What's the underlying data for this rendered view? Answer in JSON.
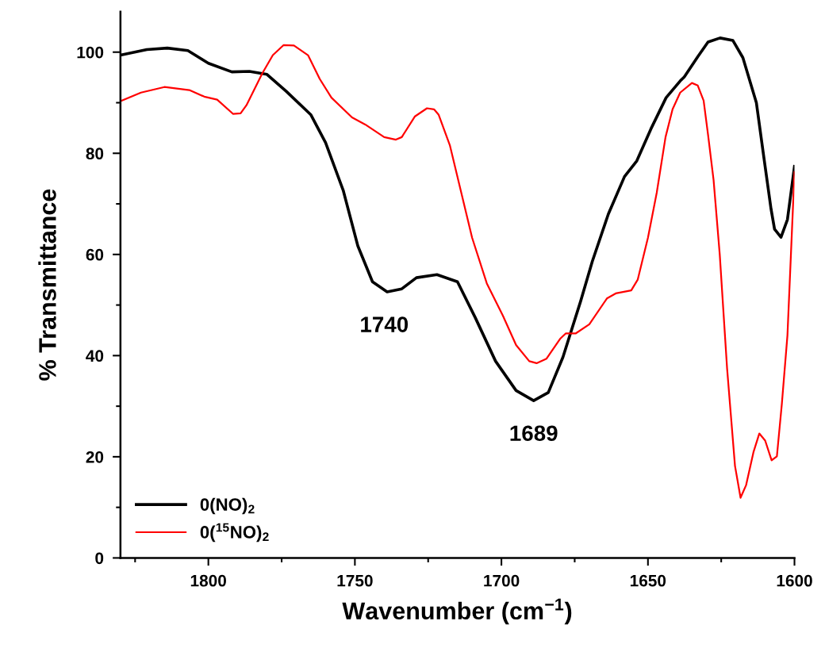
{
  "chart_data": {
    "type": "line",
    "xlabel": "Wavenumber (cm$^{−1}$)",
    "ylabel": "% Transmittance",
    "xlim": [
      1830,
      1600
    ],
    "ylim": [
      0,
      108
    ],
    "xticks": [
      1800,
      1750,
      1700,
      1650,
      1600
    ],
    "yticks": [
      0,
      20,
      40,
      60,
      80,
      100
    ],
    "grid": false,
    "legend": "bottom left",
    "line_style": "solid",
    "marker": "none",
    "series": [
      {
        "name": "0(NO)$_{2}$",
        "color": "#000000",
        "x": [
          1830,
          1821,
          1814,
          1807,
          1800,
          1792,
          1786,
          1780,
          1773.5,
          1765,
          1760,
          1754,
          1749,
          1744,
          1739,
          1734,
          1729,
          1722,
          1715,
          1709,
          1702,
          1695,
          1689,
          1684,
          1679,
          1673,
          1669,
          1663.5,
          1658,
          1653.8,
          1649,
          1643.8,
          1639,
          1637.6,
          1633,
          1629.5,
          1625.4,
          1621,
          1617.6,
          1613,
          1610.5,
          1608,
          1606.8,
          1604.6,
          1602.4,
          1600
        ],
        "values": [
          99.4,
          100.5,
          100.8,
          100.3,
          97.8,
          96.1,
          96.2,
          95.6,
          92.3,
          87.6,
          82.1,
          72.7,
          61.7,
          54.6,
          52.6,
          53.2,
          55.4,
          56,
          54.6,
          47.6,
          38.9,
          33.1,
          31.1,
          32.7,
          39.7,
          50.7,
          58.6,
          68,
          75.4,
          78.5,
          84.8,
          91,
          94.3,
          95.1,
          99.1,
          102,
          102.8,
          102.3,
          98.9,
          90,
          79.4,
          69,
          65,
          63.4,
          66.9,
          77.4
        ]
      },
      {
        "name": "0($^{15}$NO)$_{2}$",
        "color": "#ff0000",
        "x": [
          1830,
          1823,
          1815,
          1806.5,
          1801.4,
          1797,
          1791.6,
          1789,
          1787,
          1781.6,
          1778,
          1774.3,
          1770.8,
          1766,
          1762,
          1758,
          1751,
          1746.5,
          1740,
          1736,
          1734,
          1729.5,
          1725.4,
          1723,
          1721.4,
          1717.6,
          1710,
          1705,
          1699.5,
          1695,
          1690.5,
          1688,
          1684.6,
          1680,
          1678,
          1674.6,
          1670,
          1664,
          1661,
          1655.7,
          1653.5,
          1650,
          1647,
          1644,
          1641.6,
          1639,
          1635,
          1633,
          1631,
          1629.5,
          1627.6,
          1625.5,
          1623,
          1620.3,
          1618.4,
          1616.5,
          1614,
          1612,
          1610,
          1607.8,
          1606,
          1604.3,
          1602.4,
          1600
        ],
        "values": [
          90.3,
          92,
          93.1,
          92.5,
          91.2,
          90.6,
          87.8,
          87.9,
          89.5,
          95.8,
          99.4,
          101.4,
          101.3,
          99.4,
          94.7,
          91,
          87.1,
          85.7,
          83.2,
          82.7,
          83.2,
          87.3,
          88.9,
          88.7,
          87.6,
          81.6,
          63.3,
          54.3,
          47.9,
          42.1,
          38.9,
          38.5,
          39.4,
          43.3,
          44.4,
          44.4,
          46.2,
          51.3,
          52.3,
          52.9,
          55,
          63.3,
          72.2,
          83.2,
          88.7,
          92,
          93.9,
          93.4,
          90.4,
          83.7,
          74.7,
          60,
          37.5,
          18.2,
          11.9,
          14.4,
          20.9,
          24.6,
          23.2,
          19.3,
          20.1,
          30.5,
          44,
          76.3
        ]
      }
    ],
    "annotations": [
      {
        "text": "1740",
        "x": 1740,
        "y": 52.6
      },
      {
        "text": "1689",
        "x": 1689,
        "y": 31.1
      }
    ]
  }
}
